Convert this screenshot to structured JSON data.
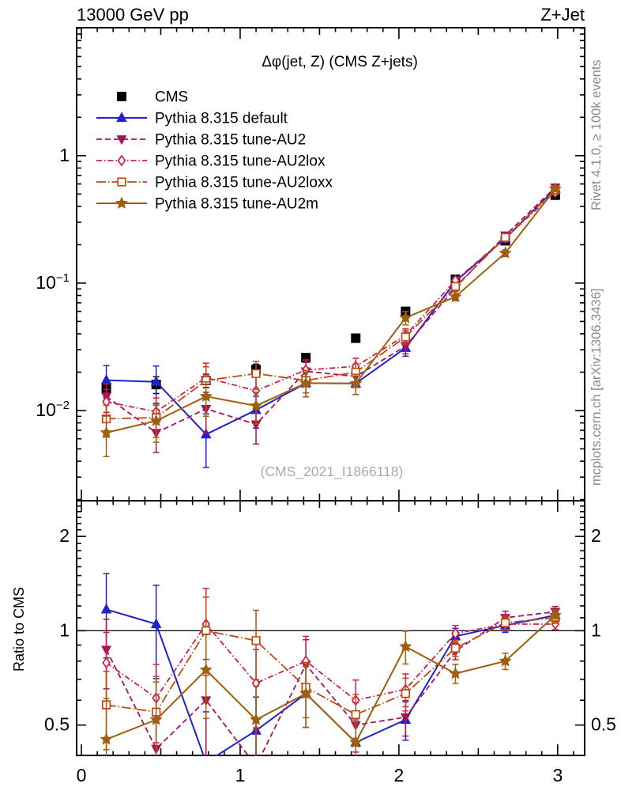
{
  "header": {
    "left": "13000 GeV pp",
    "right": "Z+Jet"
  },
  "side_texts": {
    "top_right": "Rivet 4.1.0, ≥ 100k events",
    "bottom_right": "mcplots.cern.ch [arXiv:1306.3436]"
  },
  "watermark": "(CMS_2021_I1866118)",
  "chart_data": {
    "type": "line",
    "title": "Δφ(jet, Z) (CMS Z+jets)",
    "xlabel": "",
    "ylabel": "",
    "ratio_ylabel": "Ratio to CMS",
    "legend_position": "top-left",
    "grid": false,
    "xlim": [
      -0.03,
      3.17
    ],
    "xticks": [
      0,
      1,
      2,
      3
    ],
    "main_ylim": [
      0.00196,
      10.1
    ],
    "main_yticks": [
      {
        "v": 1,
        "base": "1",
        "exp": ""
      },
      {
        "v": 0.1,
        "base": "10",
        "exp": "−1"
      },
      {
        "v": 0.01,
        "base": "10",
        "exp": "−2"
      }
    ],
    "ratio_ylim": [
      0.4,
      2.6
    ],
    "ratio_yticks": [
      {
        "v": 2,
        "base": "2",
        "exp": ""
      },
      {
        "v": 1,
        "base": "1",
        "exp": ""
      },
      {
        "v": 0.5,
        "base": "0.5",
        "exp": ""
      }
    ],
    "ratio_ref_line": 1,
    "x": [
      0.157,
      0.471,
      0.785,
      1.1,
      1.414,
      1.728,
      2.042,
      2.356,
      2.67,
      2.985
    ],
    "series": [
      {
        "name": "CMS",
        "color": "#000000",
        "marker": "square-filled",
        "line": "none",
        "values": [
          0.0148,
          0.016,
          0.0172,
          0.021,
          0.026,
          0.037,
          0.06,
          0.107,
          0.215,
          0.49
        ],
        "err_frac": [
          0.15,
          0.15,
          0.12,
          0.1,
          0.08,
          0.07,
          0.06,
          0.05,
          0.04,
          0.035
        ]
      },
      {
        "name": "Pythia 8.315 default",
        "color": "#2222cc",
        "marker": "triangle-up",
        "line": "solid",
        "values": [
          0.0173,
          0.0168,
          0.0065,
          0.0101,
          0.0164,
          0.0163,
          0.031,
          0.103,
          0.224,
          0.549
        ],
        "ratio": [
          1.17,
          1.05,
          0.38,
          0.48,
          0.63,
          0.44,
          0.52,
          0.96,
          1.04,
          1.12
        ],
        "err_frac": [
          0.3,
          0.33,
          0.45,
          0.28,
          0.22,
          0.18,
          0.14,
          0.06,
          0.05,
          0.04
        ]
      },
      {
        "name": "Pythia 8.315 tune-AU2",
        "color": "#a81457",
        "marker": "triangle-down",
        "line": "dash",
        "values": [
          0.0129,
          0.0067,
          0.0103,
          0.0078,
          0.0203,
          0.0185,
          0.032,
          0.092,
          0.237,
          0.564
        ],
        "ratio": [
          0.87,
          0.42,
          0.6,
          0.37,
          0.78,
          0.5,
          0.53,
          0.86,
          1.1,
          1.15
        ],
        "err_frac": [
          0.25,
          0.3,
          0.35,
          0.3,
          0.2,
          0.18,
          0.13,
          0.06,
          0.05,
          0.04
        ]
      },
      {
        "name": "Pythia 8.315 tune-AU2lox",
        "color": "#cc1e4e",
        "marker": "diamond-open",
        "line": "dashdot",
        "values": [
          0.0117,
          0.0098,
          0.0181,
          0.0143,
          0.0208,
          0.0222,
          0.039,
          0.105,
          0.226,
          0.515
        ],
        "ratio": [
          0.79,
          0.61,
          1.05,
          0.68,
          0.8,
          0.6,
          0.65,
          0.98,
          1.05,
          1.05
        ],
        "err_frac": [
          0.25,
          0.28,
          0.3,
          0.28,
          0.2,
          0.16,
          0.12,
          0.06,
          0.05,
          0.04
        ]
      },
      {
        "name": "Pythia 8.315 tune-AU2loxx",
        "color": "#bf4a10",
        "marker": "square-open",
        "line": "longdashdot",
        "values": [
          0.0086,
          0.0088,
          0.0172,
          0.0195,
          0.0172,
          0.02,
          0.0378,
          0.094,
          0.228,
          0.539
        ],
        "ratio": [
          0.58,
          0.55,
          1.0,
          0.93,
          0.66,
          0.54,
          0.63,
          0.88,
          1.06,
          1.1
        ],
        "err_frac": [
          0.28,
          0.3,
          0.28,
          0.25,
          0.2,
          0.16,
          0.12,
          0.06,
          0.05,
          0.04
        ]
      },
      {
        "name": "Pythia 8.315 tune-AU2m",
        "color": "#9e5f10",
        "marker": "star",
        "line": "solid",
        "values": [
          0.0067,
          0.0083,
          0.0129,
          0.0109,
          0.0164,
          0.0163,
          0.0534,
          0.0781,
          0.172,
          0.549
        ],
        "ratio": [
          0.45,
          0.52,
          0.75,
          0.52,
          0.63,
          0.44,
          0.89,
          0.73,
          0.8,
          1.12
        ],
        "err_frac": [
          0.35,
          0.32,
          0.3,
          0.28,
          0.22,
          0.18,
          0.12,
          0.07,
          0.06,
          0.04
        ]
      }
    ]
  }
}
